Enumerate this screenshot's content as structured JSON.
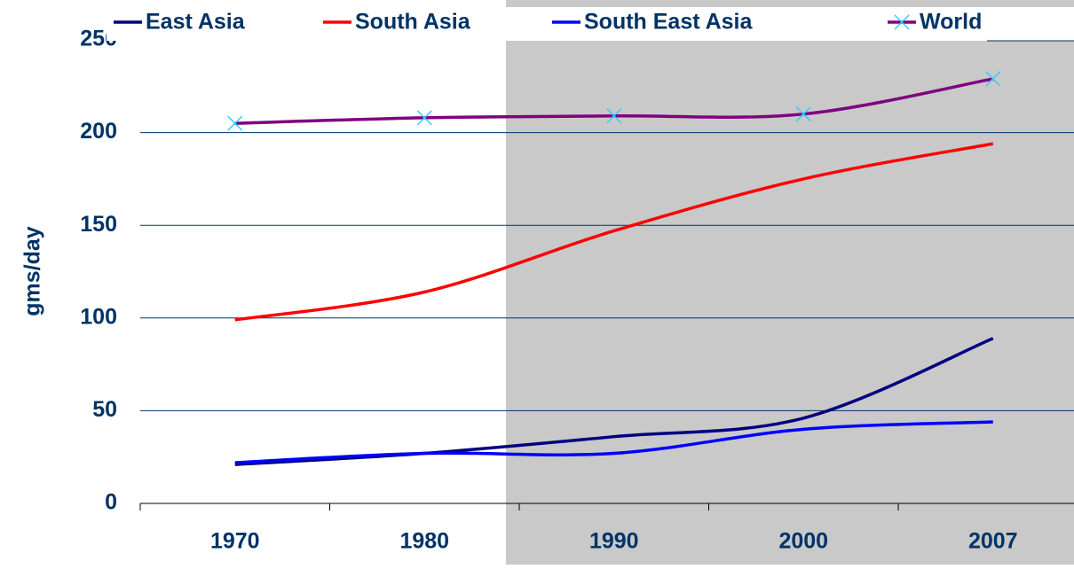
{
  "chart_data": {
    "type": "line",
    "y_label": "gms/day",
    "categories": [
      "1970",
      "1980",
      "1990",
      "2000",
      "2007"
    ],
    "series": [
      {
        "name": "East Asia",
        "color": "#000080",
        "values": [
          21,
          27,
          36,
          46,
          89
        ]
      },
      {
        "name": "South Asia",
        "color": "#ff0000",
        "values": [
          99,
          114,
          147,
          175,
          194
        ]
      },
      {
        "name": "South East Asia",
        "color": "#0000ff",
        "values": [
          22,
          27,
          27,
          40,
          44
        ]
      },
      {
        "name": "World",
        "color": "#800080",
        "marker_color": "#33ccff",
        "values": [
          205,
          208,
          209,
          210,
          229
        ]
      }
    ],
    "ylim": [
      0,
      250
    ],
    "yticks": [
      0,
      50,
      100,
      150,
      200,
      250
    ],
    "grid": true
  }
}
